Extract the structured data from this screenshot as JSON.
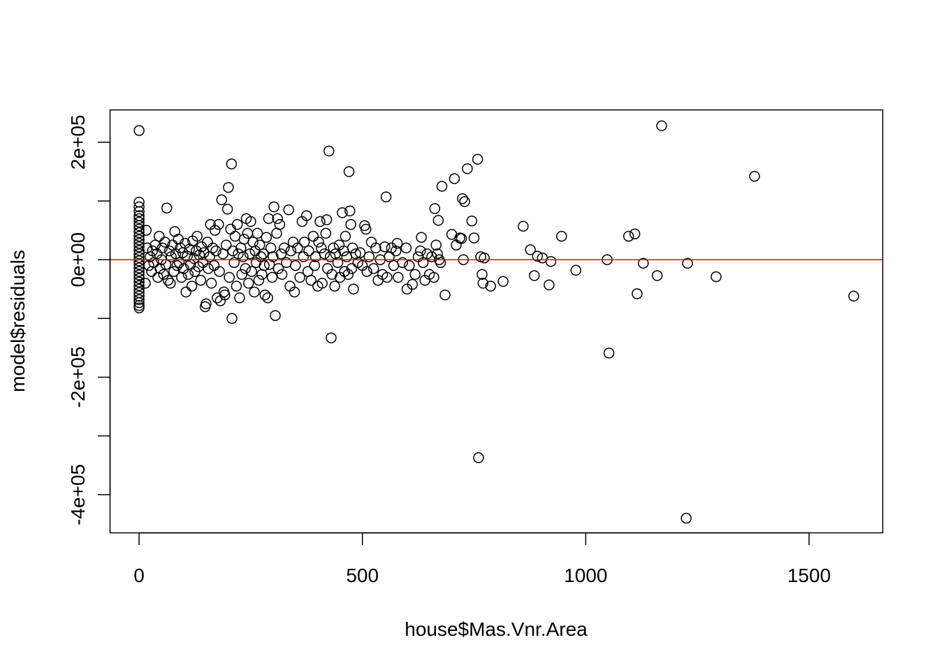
{
  "chart_data": {
    "type": "scatter",
    "title": "",
    "xlabel": "house$Mas.Vnr.Area",
    "ylabel": "model$residuals",
    "xlim": [
      -65,
      1665
    ],
    "ylim": [
      -465000,
      255000
    ],
    "xticks": [
      0,
      500,
      1000,
      1500
    ],
    "xtick_labels": [
      "0",
      "500",
      "1000",
      "1500"
    ],
    "yticks": [
      -400000,
      -300000,
      -200000,
      -100000,
      0,
      100000,
      200000
    ],
    "ytick_labels": [
      "-4e+05",
      "",
      "-2e+05",
      "",
      "0e+00",
      "",
      "2e+05"
    ],
    "grid": false,
    "legend": "none",
    "point_style": "open-circle",
    "point_color": "#000000",
    "reference_line": {
      "y": 0,
      "color": "#ff0000"
    },
    "series": [
      {
        "marker": "circle",
        "points": [
          [
            0,
            220000
          ],
          [
            0,
            98000
          ],
          [
            0,
            90000
          ],
          [
            0,
            82000
          ],
          [
            0,
            75000
          ],
          [
            0,
            70000
          ],
          [
            0,
            64000
          ],
          [
            0,
            58000
          ],
          [
            0,
            52000
          ],
          [
            0,
            46000
          ],
          [
            0,
            40000
          ],
          [
            0,
            34000
          ],
          [
            0,
            28000
          ],
          [
            0,
            22000
          ],
          [
            0,
            16000
          ],
          [
            0,
            10000
          ],
          [
            0,
            4000
          ],
          [
            0,
            -2000
          ],
          [
            0,
            -8000
          ],
          [
            0,
            -14000
          ],
          [
            0,
            -20000
          ],
          [
            0,
            -26000
          ],
          [
            0,
            -32000
          ],
          [
            0,
            -38000
          ],
          [
            0,
            -44000
          ],
          [
            0,
            -50000
          ],
          [
            0,
            -56000
          ],
          [
            0,
            -62000
          ],
          [
            0,
            -68000
          ],
          [
            0,
            -73000
          ],
          [
            0,
            -78000
          ],
          [
            0,
            -82000
          ],
          [
            16,
            50000
          ],
          [
            14,
            -40000
          ],
          [
            18,
            20000
          ],
          [
            22,
            -10000
          ],
          [
            25,
            5000
          ],
          [
            28,
            -20000
          ],
          [
            30,
            15000
          ],
          [
            33,
            -5000
          ],
          [
            36,
            25000
          ],
          [
            40,
            10000
          ],
          [
            42,
            -30000
          ],
          [
            45,
            40000
          ],
          [
            47,
            -15000
          ],
          [
            50,
            0
          ],
          [
            52,
            20000
          ],
          [
            55,
            -25000
          ],
          [
            58,
            30000
          ],
          [
            60,
            -8000
          ],
          [
            62,
            88000
          ],
          [
            65,
            -35000
          ],
          [
            68,
            15000
          ],
          [
            70,
            -40000
          ],
          [
            72,
            5000
          ],
          [
            75,
            25000
          ],
          [
            78,
            -20000
          ],
          [
            80,
            48000
          ],
          [
            82,
            10000
          ],
          [
            85,
            -10000
          ],
          [
            88,
            35000
          ],
          [
            90,
            -5000
          ],
          [
            92,
            20000
          ],
          [
            95,
            -30000
          ],
          [
            98,
            12000
          ],
          [
            100,
            -15000
          ],
          [
            103,
            28000
          ],
          [
            105,
            -55000
          ],
          [
            108,
            6000
          ],
          [
            110,
            -25000
          ],
          [
            113,
            18000
          ],
          [
            115,
            -8000
          ],
          [
            118,
            -45000
          ],
          [
            120,
            32000
          ],
          [
            123,
            2000
          ],
          [
            125,
            -20000
          ],
          [
            128,
            15000
          ],
          [
            130,
            40000
          ],
          [
            133,
            -12000
          ],
          [
            135,
            8000
          ],
          [
            138,
            -35000
          ],
          [
            140,
            22000
          ],
          [
            143,
            -5000
          ],
          [
            145,
            12000
          ],
          [
            148,
            -80000
          ],
          [
            150,
            -75000
          ],
          [
            153,
            30000
          ],
          [
            155,
            -15000
          ],
          [
            158,
            5000
          ],
          [
            160,
            60000
          ],
          [
            162,
            -40000
          ],
          [
            165,
            20000
          ],
          [
            168,
            -10000
          ],
          [
            170,
            50000
          ],
          [
            172,
            15000
          ],
          [
            175,
            -65000
          ],
          [
            178,
            60000
          ],
          [
            180,
            -20000
          ],
          [
            182,
            -70000
          ],
          [
            185,
            102000
          ],
          [
            188,
            10000
          ],
          [
            190,
            -55000
          ],
          [
            192,
            -60000
          ],
          [
            195,
            25000
          ],
          [
            198,
            86000
          ],
          [
            200,
            123000
          ],
          [
            202,
            -30000
          ],
          [
            205,
            52000
          ],
          [
            207,
            163000
          ],
          [
            208,
            -100000
          ],
          [
            210,
            15000
          ],
          [
            213,
            -5000
          ],
          [
            215,
            40000
          ],
          [
            218,
            -45000
          ],
          [
            220,
            60000
          ],
          [
            222,
            10000
          ],
          [
            225,
            -65000
          ],
          [
            228,
            20000
          ],
          [
            230,
            -25000
          ],
          [
            233,
            5000
          ],
          [
            235,
            35000
          ],
          [
            238,
            -15000
          ],
          [
            240,
            70000
          ],
          [
            243,
            45000
          ],
          [
            245,
            -40000
          ],
          [
            248,
            10000
          ],
          [
            250,
            65000
          ],
          [
            252,
            -20000
          ],
          [
            255,
            30000
          ],
          [
            258,
            -55000
          ],
          [
            260,
            15000
          ],
          [
            262,
            -5000
          ],
          [
            265,
            45000
          ],
          [
            268,
            -35000
          ],
          [
            270,
            25000
          ],
          [
            273,
            5000
          ],
          [
            275,
            -25000
          ],
          [
            278,
            10000
          ],
          [
            280,
            -10000
          ],
          [
            282,
            -60000
          ],
          [
            285,
            38000
          ],
          [
            288,
            -65000
          ],
          [
            290,
            70000
          ],
          [
            292,
            -8000
          ],
          [
            295,
            20000
          ],
          [
            298,
            -30000
          ],
          [
            300,
            5000
          ],
          [
            302,
            90000
          ],
          [
            305,
            -95000
          ],
          [
            308,
            45000
          ],
          [
            310,
            70000
          ],
          [
            312,
            -15000
          ],
          [
            315,
            60000
          ],
          [
            318,
            10000
          ],
          [
            320,
            -25000
          ],
          [
            325,
            20000
          ],
          [
            330,
            -5000
          ],
          [
            335,
            85000
          ],
          [
            338,
            -45000
          ],
          [
            340,
            15000
          ],
          [
            345,
            30000
          ],
          [
            348,
            -55000
          ],
          [
            350,
            -10000
          ],
          [
            355,
            20000
          ],
          [
            360,
            -30000
          ],
          [
            365,
            65000
          ],
          [
            368,
            5000
          ],
          [
            370,
            30000
          ],
          [
            375,
            75000
          ],
          [
            378,
            -20000
          ],
          [
            380,
            15000
          ],
          [
            385,
            -35000
          ],
          [
            390,
            40000
          ],
          [
            393,
            -10000
          ],
          [
            395,
            5000
          ],
          [
            400,
            -45000
          ],
          [
            402,
            30000
          ],
          [
            405,
            65000
          ],
          [
            408,
            20000
          ],
          [
            410,
            -40000
          ],
          [
            415,
            10000
          ],
          [
            418,
            45000
          ],
          [
            420,
            68000
          ],
          [
            422,
            -15000
          ],
          [
            425,
            185000
          ],
          [
            428,
            5000
          ],
          [
            430,
            -133000
          ],
          [
            432,
            -25000
          ],
          [
            435,
            20000
          ],
          [
            438,
            -45000
          ],
          [
            440,
            10000
          ],
          [
            445,
            -5000
          ],
          [
            448,
            25000
          ],
          [
            450,
            -30000
          ],
          [
            455,
            80000
          ],
          [
            458,
            15000
          ],
          [
            460,
            -20000
          ],
          [
            462,
            40000
          ],
          [
            465,
            5000
          ],
          [
            468,
            -25000
          ],
          [
            470,
            150000
          ],
          [
            472,
            83000
          ],
          [
            474,
            60000
          ],
          [
            476,
            -15000
          ],
          [
            478,
            20000
          ],
          [
            480,
            -50000
          ],
          [
            485,
            10000
          ],
          [
            490,
            -5000
          ],
          [
            495,
            12000
          ],
          [
            500,
            -10000
          ],
          [
            505,
            58000
          ],
          [
            508,
            52000
          ],
          [
            510,
            -20000
          ],
          [
            515,
            5000
          ],
          [
            520,
            30000
          ],
          [
            525,
            -15000
          ],
          [
            530,
            20000
          ],
          [
            535,
            -35000
          ],
          [
            540,
            0
          ],
          [
            545,
            -25000
          ],
          [
            550,
            22000
          ],
          [
            553,
            107000
          ],
          [
            555,
            -30000
          ],
          [
            560,
            5000
          ],
          [
            565,
            20000
          ],
          [
            570,
            -10000
          ],
          [
            575,
            15000
          ],
          [
            578,
            28000
          ],
          [
            580,
            -30000
          ],
          [
            590,
            -5000
          ],
          [
            598,
            20000
          ],
          [
            600,
            -50000
          ],
          [
            605,
            -10000
          ],
          [
            612,
            -42000
          ],
          [
            618,
            -25000
          ],
          [
            625,
            5000
          ],
          [
            630,
            15000
          ],
          [
            632,
            38000
          ],
          [
            636,
            -5000
          ],
          [
            640,
            -35000
          ],
          [
            645,
            10000
          ],
          [
            650,
            -25000
          ],
          [
            655,
            5000
          ],
          [
            660,
            -30000
          ],
          [
            662,
            87000
          ],
          [
            665,
            25000
          ],
          [
            668,
            10000
          ],
          [
            670,
            67000
          ],
          [
            672,
            0
          ],
          [
            675,
            -5000
          ],
          [
            678,
            125000
          ],
          [
            685,
            -60000
          ],
          [
            700,
            43000
          ],
          [
            706,
            138000
          ],
          [
            710,
            25000
          ],
          [
            718,
            37000
          ],
          [
            722,
            36000
          ],
          [
            724,
            104000
          ],
          [
            726,
            0
          ],
          [
            729,
            99000
          ],
          [
            735,
            155000
          ],
          [
            745,
            66000
          ],
          [
            750,
            37000
          ],
          [
            758,
            171000
          ],
          [
            760,
            -337000
          ],
          [
            765,
            5000
          ],
          [
            768,
            -25000
          ],
          [
            770,
            -40000
          ],
          [
            773,
            3000
          ],
          [
            787,
            -45000
          ],
          [
            815,
            -37000
          ],
          [
            860,
            57000
          ],
          [
            876,
            17000
          ],
          [
            885,
            -27000
          ],
          [
            892,
            6000
          ],
          [
            903,
            3000
          ],
          [
            918,
            -43000
          ],
          [
            922,
            -3000
          ],
          [
            946,
            40000
          ],
          [
            978,
            -18000
          ],
          [
            1048,
            0
          ],
          [
            1052,
            -159000
          ],
          [
            1096,
            40000
          ],
          [
            1110,
            44000
          ],
          [
            1115,
            -58000
          ],
          [
            1129,
            -6000
          ],
          [
            1160,
            -27000
          ],
          [
            1170,
            228000
          ],
          [
            1225,
            -440000
          ],
          [
            1228,
            -6000
          ],
          [
            1292,
            -29000
          ],
          [
            1378,
            142000
          ],
          [
            1600,
            -62000
          ]
        ]
      }
    ]
  }
}
